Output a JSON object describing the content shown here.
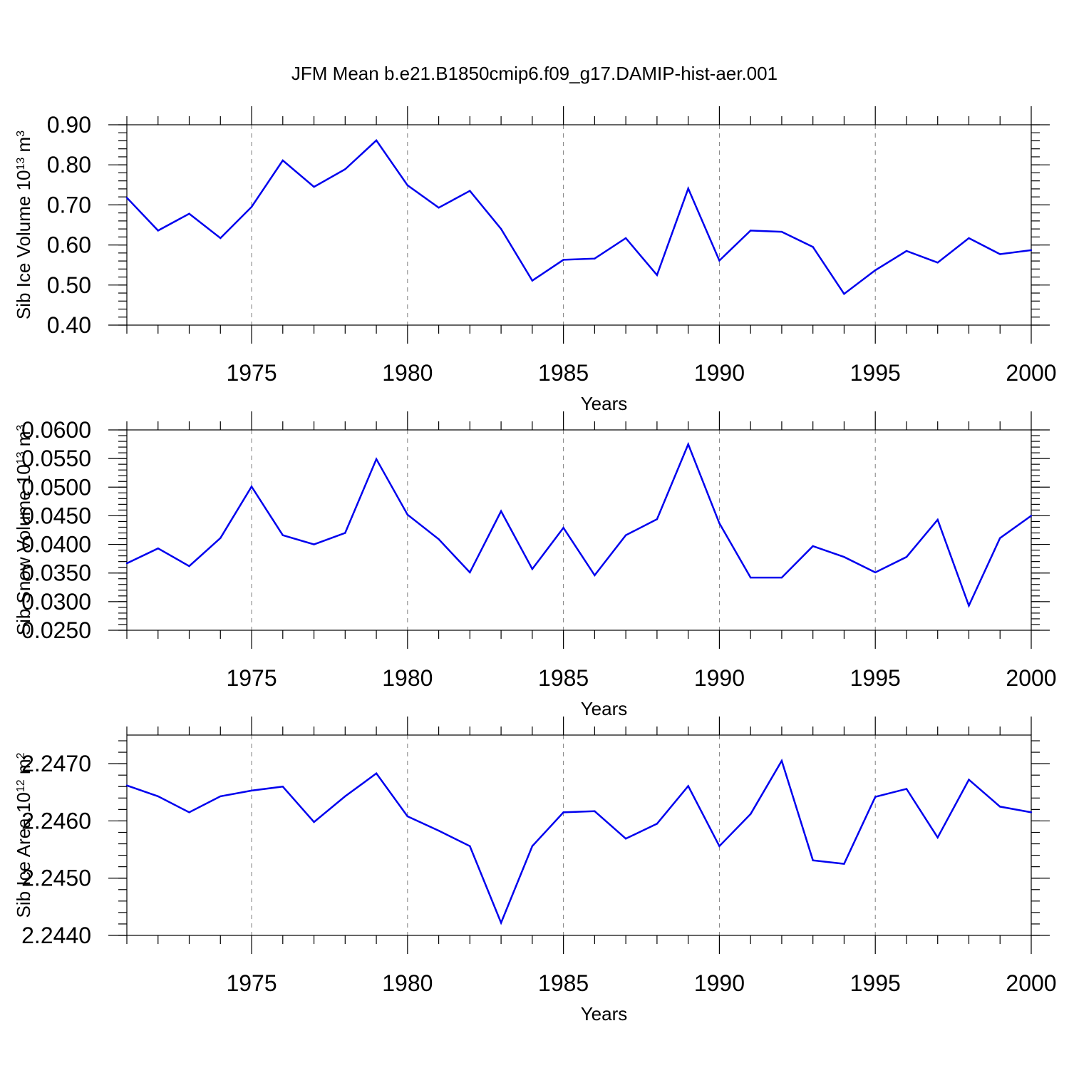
{
  "title": "JFM Mean b.e21.B1850cmip6.f09_g17.DAMIP-hist-aer.001",
  "colors": {
    "line": "#0000ee",
    "axis": "#000000",
    "grid": "#7f7f7f"
  },
  "chart_data": [
    {
      "type": "line",
      "xlabel": "Years",
      "ylabel": {
        "base": "Sib Ice Volume 10",
        "sup1": "13",
        "mid": " m",
        "sup2": "3"
      },
      "xlim": [
        1971,
        2000
      ],
      "ylim": [
        0.4,
        0.9
      ],
      "xticks": [
        1975,
        1980,
        1985,
        1990,
        1995,
        2000
      ],
      "xtick_labels": [
        "1975",
        "1980",
        "1985",
        "1990",
        "1995",
        "2000"
      ],
      "yticks": [
        0.4,
        0.5,
        0.6,
        0.7,
        0.8,
        0.9
      ],
      "ytick_labels": [
        "0.40",
        "0.50",
        "0.60",
        "0.70",
        "0.80",
        "0.90"
      ],
      "minor_y_step": 0.02,
      "x": [
        1971,
        1972,
        1973,
        1974,
        1975,
        1976,
        1977,
        1978,
        1979,
        1980,
        1981,
        1982,
        1983,
        1984,
        1985,
        1986,
        1987,
        1988,
        1989,
        1990,
        1991,
        1992,
        1993,
        1994,
        1995,
        1996,
        1997,
        1998,
        1999,
        2000
      ],
      "values": [
        0.718,
        0.636,
        0.678,
        0.617,
        0.695,
        0.811,
        0.745,
        0.789,
        0.861,
        0.749,
        0.693,
        0.735,
        0.64,
        0.511,
        0.563,
        0.566,
        0.617,
        0.525,
        0.741,
        0.561,
        0.636,
        0.633,
        0.595,
        0.478,
        0.537,
        0.585,
        0.556,
        0.617,
        0.577,
        0.587
      ]
    },
    {
      "type": "line",
      "xlabel": "Years",
      "ylabel": {
        "base": "Sib Snow Volume 10",
        "sup1": "13",
        "mid": " m",
        "sup2": "3"
      },
      "xlim": [
        1971,
        2000
      ],
      "ylim": [
        0.025,
        0.06
      ],
      "xticks": [
        1975,
        1980,
        1985,
        1990,
        1995,
        2000
      ],
      "xtick_labels": [
        "1975",
        "1980",
        "1985",
        "1990",
        "1995",
        "2000"
      ],
      "yticks": [
        0.025,
        0.03,
        0.035,
        0.04,
        0.045,
        0.05,
        0.055,
        0.06
      ],
      "ytick_labels": [
        "0.0250",
        "0.0300",
        "0.0350",
        "0.0400",
        "0.0450",
        "0.0500",
        "0.0550",
        "0.0600"
      ],
      "minor_y_step": 0.001,
      "x": [
        1971,
        1972,
        1973,
        1974,
        1975,
        1976,
        1977,
        1978,
        1979,
        1980,
        1981,
        1982,
        1983,
        1984,
        1985,
        1986,
        1987,
        1988,
        1989,
        1990,
        1991,
        1992,
        1993,
        1994,
        1995,
        1996,
        1997,
        1998,
        1999,
        2000
      ],
      "values": [
        0.0367,
        0.0393,
        0.0362,
        0.0411,
        0.0501,
        0.0416,
        0.04,
        0.042,
        0.0549,
        0.0452,
        0.0409,
        0.0351,
        0.0458,
        0.0357,
        0.0429,
        0.0346,
        0.0416,
        0.0444,
        0.0575,
        0.0437,
        0.0342,
        0.0342,
        0.0397,
        0.0378,
        0.0351,
        0.0378,
        0.0443,
        0.0293,
        0.0411,
        0.045
      ]
    },
    {
      "type": "line",
      "xlabel": "Years",
      "ylabel": {
        "base": "Sib Ice Area 10",
        "sup1": "12",
        "mid": " m",
        "sup2": "2"
      },
      "xlim": [
        1971,
        2000
      ],
      "ylim": [
        2.244,
        2.2475
      ],
      "xticks": [
        1975,
        1980,
        1985,
        1990,
        1995,
        2000
      ],
      "xtick_labels": [
        "1975",
        "1980",
        "1985",
        "1990",
        "1995",
        "2000"
      ],
      "yticks": [
        2.244,
        2.245,
        2.246,
        2.247
      ],
      "ytick_labels": [
        "2.2440",
        "2.2450",
        "2.2460",
        "2.2470"
      ],
      "minor_y_step": 0.0002,
      "x": [
        1971,
        1972,
        1973,
        1974,
        1975,
        1976,
        1977,
        1978,
        1979,
        1980,
        1981,
        1982,
        1983,
        1984,
        1985,
        1986,
        1987,
        1988,
        1989,
        1990,
        1991,
        1992,
        1993,
        1994,
        1995,
        1996,
        1997,
        1998,
        1999,
        2000
      ],
      "values": [
        2.24662,
        2.24643,
        2.24615,
        2.24643,
        2.24653,
        2.2466,
        2.24598,
        2.24643,
        2.24683,
        2.24608,
        2.24583,
        2.24556,
        2.24422,
        2.24556,
        2.24615,
        2.24617,
        2.24569,
        2.24595,
        2.24661,
        2.24556,
        2.24612,
        2.24705,
        2.24531,
        2.24525,
        2.24642,
        2.24656,
        2.24571,
        2.24672,
        2.24625,
        2.24615
      ]
    }
  ]
}
